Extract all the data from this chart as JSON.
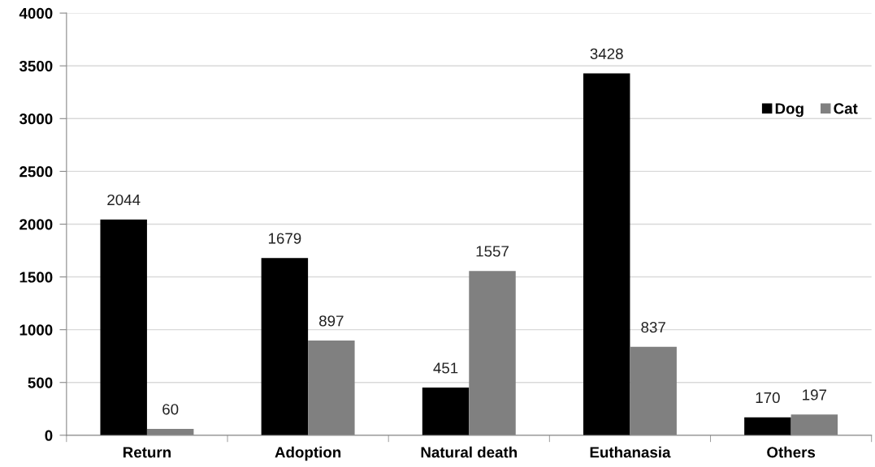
{
  "chart_data": {
    "type": "bar",
    "categories": [
      "Return",
      "Adoption",
      "Natural death",
      "Euthanasia",
      "Others"
    ],
    "series": [
      {
        "name": "Dog",
        "color": "#000000",
        "values": [
          2044,
          1679,
          451,
          3428,
          170
        ]
      },
      {
        "name": "Cat",
        "color": "#808080",
        "values": [
          60,
          897,
          1557,
          837,
          197
        ]
      }
    ],
    "ylim": [
      0,
      4000
    ],
    "yticks": [
      0,
      500,
      1000,
      1500,
      2000,
      2500,
      3000,
      3500,
      4000
    ],
    "grid": "y",
    "legend": "top right",
    "data_labels": true
  }
}
